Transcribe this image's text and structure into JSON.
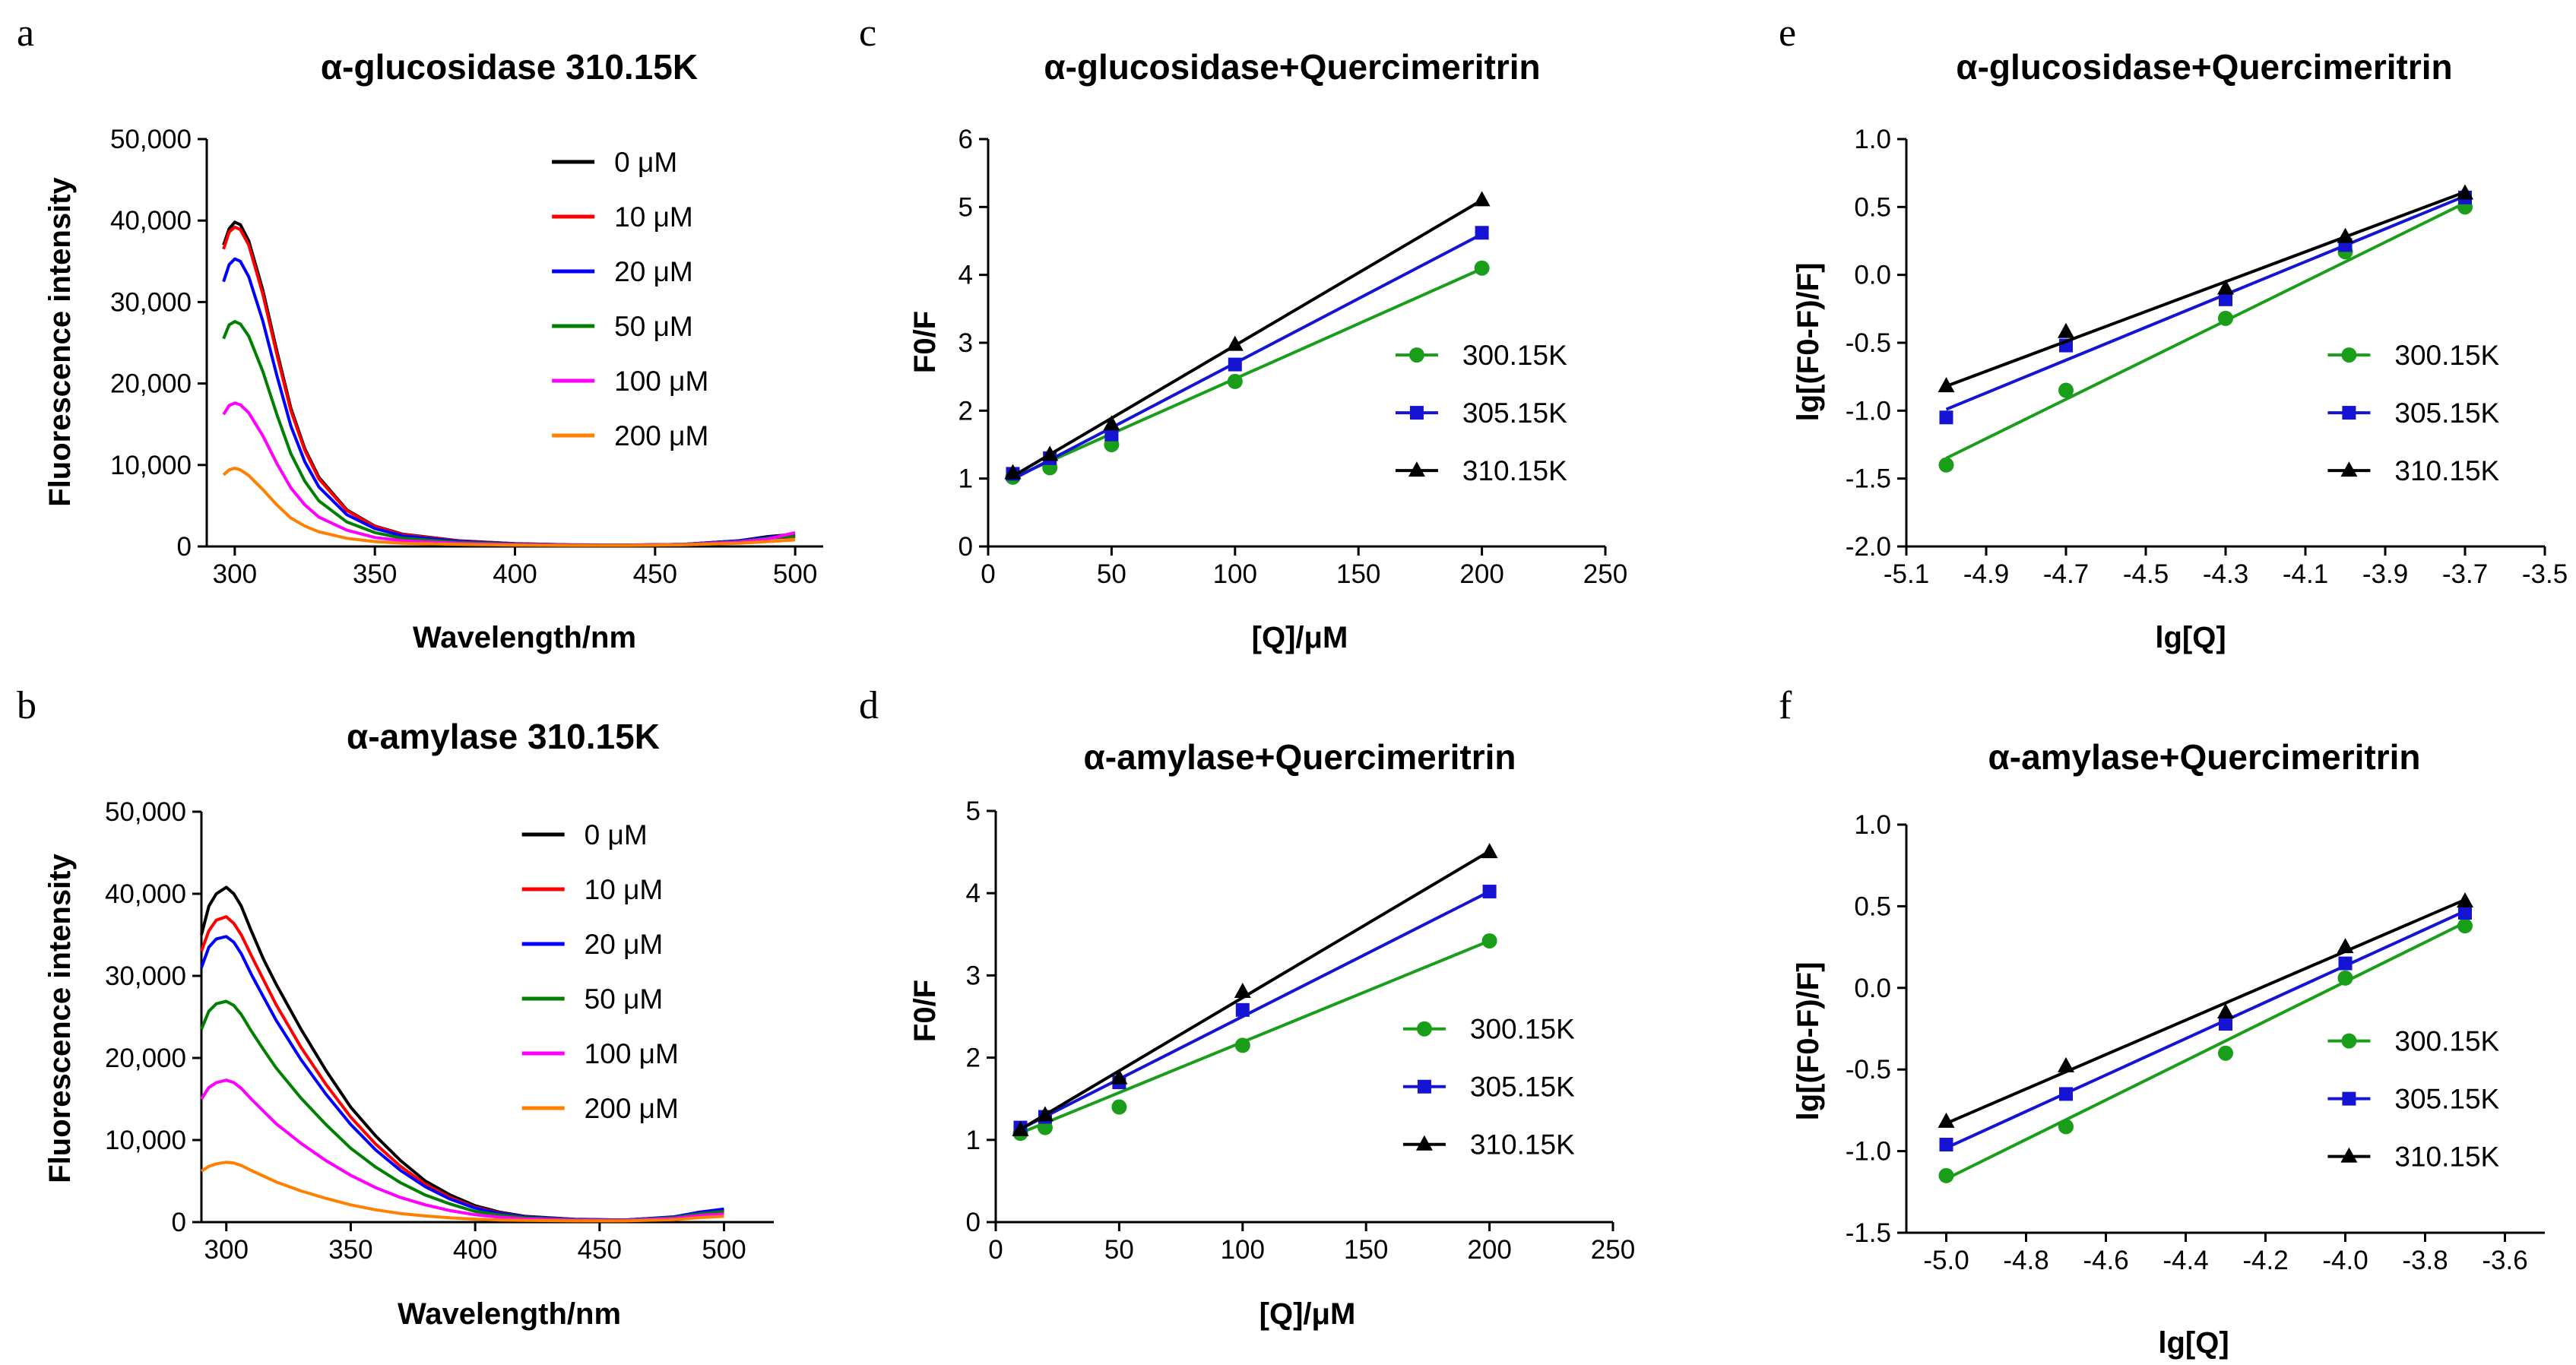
{
  "figure": {
    "background": "#ffffff"
  },
  "chart_data": [
    {
      "panel": "a",
      "type": "line",
      "title": "α-glucosidase 310.15K",
      "xlabel": "Wavelength/nm",
      "ylabel": "Fluorescence intensity",
      "xlim": [
        290,
        510
      ],
      "ylim": [
        0,
        50000
      ],
      "xticks": [
        300,
        350,
        400,
        450,
        500
      ],
      "xtick_labels": [
        "300",
        "350",
        "400",
        "450",
        "500"
      ],
      "yticks": [
        0,
        10000,
        20000,
        30000,
        40000,
        50000
      ],
      "ytick_labels": [
        "0",
        "10,000",
        "20,000",
        "30,000",
        "40,000",
        "50,000"
      ],
      "legend_position": "top-right",
      "x": [
        296,
        298,
        300,
        302,
        305,
        310,
        315,
        320,
        325,
        330,
        340,
        350,
        360,
        380,
        400,
        420,
        440,
        460,
        480,
        490,
        500
      ],
      "series": [
        {
          "name": "0 μM",
          "color": "#000000",
          "values": [
            37000,
            39000,
            39800,
            39500,
            37500,
            31500,
            24000,
            17000,
            12000,
            8500,
            4500,
            2500,
            1500,
            700,
            350,
            200,
            180,
            250,
            700,
            1200,
            1500
          ]
        },
        {
          "name": "10 μM",
          "color": "#ff0000",
          "values": [
            36500,
            38600,
            39200,
            38900,
            37000,
            31000,
            23600,
            16700,
            11800,
            8300,
            4400,
            2450,
            1450,
            680,
            340,
            200,
            180,
            250,
            650,
            1000,
            1200
          ]
        },
        {
          "name": "20 μM",
          "color": "#0000ff",
          "values": [
            32500,
            34600,
            35300,
            35000,
            33100,
            27700,
            21000,
            14800,
            10400,
            7300,
            3900,
            2200,
            1300,
            620,
            320,
            190,
            170,
            250,
            700,
            1100,
            1400
          ]
        },
        {
          "name": "50 μM",
          "color": "#008000",
          "values": [
            25500,
            27200,
            27600,
            27300,
            25800,
            21500,
            16200,
            11400,
            8000,
            5600,
            3000,
            1700,
            1000,
            500,
            280,
            170,
            160,
            250,
            600,
            1000,
            1300
          ]
        },
        {
          "name": "100 μM",
          "color": "#ff00ff",
          "values": [
            16200,
            17300,
            17600,
            17400,
            16400,
            13600,
            10200,
            7200,
            5100,
            3600,
            2000,
            1100,
            700,
            380,
            230,
            150,
            150,
            230,
            550,
            900,
            1700
          ]
        },
        {
          "name": "200 μM",
          "color": "#ff8000",
          "values": [
            8800,
            9400,
            9600,
            9400,
            8700,
            7000,
            5100,
            3500,
            2500,
            1800,
            1000,
            600,
            400,
            250,
            170,
            130,
            130,
            200,
            400,
            600,
            800
          ]
        }
      ]
    },
    {
      "panel": "b",
      "type": "line",
      "title": "α-amylase 310.15K",
      "xlabel": "Wavelength/nm",
      "ylabel": "Fluorescence intensity",
      "xlim": [
        290,
        520
      ],
      "ylim": [
        0,
        50000
      ],
      "xticks": [
        300,
        350,
        400,
        450,
        500
      ],
      "xtick_labels": [
        "300",
        "350",
        "400",
        "450",
        "500"
      ],
      "yticks": [
        0,
        10000,
        20000,
        30000,
        40000,
        50000
      ],
      "ytick_labels": [
        "0",
        "10,000",
        "20,000",
        "30,000",
        "40,000",
        "50,000"
      ],
      "legend_position": "top-right",
      "x": [
        290,
        293,
        296,
        300,
        303,
        306,
        310,
        315,
        320,
        330,
        340,
        350,
        360,
        370,
        380,
        390,
        400,
        410,
        420,
        440,
        460,
        480,
        490,
        500
      ],
      "series": [
        {
          "name": "0 μM",
          "color": "#000000",
          "values": [
            35000,
            38500,
            40000,
            40800,
            40000,
            38500,
            35500,
            32000,
            29000,
            23500,
            18500,
            14000,
            10500,
            7500,
            5000,
            3300,
            2000,
            1200,
            700,
            350,
            250,
            600,
            1200,
            1500
          ]
        },
        {
          "name": "10 μM",
          "color": "#ff0000",
          "values": [
            33000,
            35500,
            36800,
            37200,
            36400,
            35000,
            32500,
            29500,
            26500,
            21300,
            16800,
            12800,
            9500,
            6800,
            4600,
            3000,
            1800,
            1100,
            650,
            330,
            250,
            600,
            1100,
            1400
          ]
        },
        {
          "name": "20 μM",
          "color": "#0000ff",
          "values": [
            31000,
            33500,
            34500,
            34800,
            34100,
            32700,
            30200,
            27400,
            24600,
            19800,
            15600,
            11900,
            8800,
            6300,
            4300,
            2800,
            1700,
            1050,
            620,
            320,
            250,
            650,
            1200,
            1600
          ]
        },
        {
          "name": "50 μM",
          "color": "#008000",
          "values": [
            23500,
            25700,
            26600,
            26900,
            26400,
            25300,
            23300,
            21000,
            18800,
            15100,
            11900,
            9000,
            6700,
            4800,
            3300,
            2200,
            1300,
            850,
            520,
            290,
            230,
            550,
            1000,
            1300
          ]
        },
        {
          "name": "100 μM",
          "color": "#ff00ff",
          "values": [
            15000,
            16400,
            17000,
            17300,
            17000,
            16300,
            15000,
            13500,
            12000,
            9600,
            7500,
            5700,
            4200,
            3000,
            2100,
            1400,
            900,
            600,
            400,
            240,
            200,
            450,
            800,
            1000
          ]
        },
        {
          "name": "200 μM",
          "color": "#ff8000",
          "values": [
            6200,
            6800,
            7100,
            7300,
            7200,
            6900,
            6300,
            5600,
            4900,
            3800,
            2900,
            2100,
            1500,
            1050,
            750,
            520,
            360,
            260,
            200,
            150,
            150,
            300,
            550,
            700
          ]
        }
      ]
    },
    {
      "panel": "c",
      "type": "scatter",
      "title": "α-glucosidase+Quercimeritrin",
      "xlabel": "[Q]/μM",
      "ylabel": "F0/F",
      "xlim": [
        0,
        250
      ],
      "ylim": [
        0,
        6
      ],
      "xticks": [
        0,
        50,
        100,
        150,
        200,
        250
      ],
      "xtick_labels": [
        "0",
        "50",
        "100",
        "150",
        "200",
        "250"
      ],
      "yticks": [
        0,
        1,
        2,
        3,
        4,
        5,
        6
      ],
      "ytick_labels": [
        "0",
        "1",
        "2",
        "3",
        "4",
        "5",
        "6"
      ],
      "legend_position": "center-right",
      "fit_lines": true,
      "x": [
        10,
        25,
        50,
        100,
        200
      ],
      "series": [
        {
          "name": "300.15K",
          "color": "#1a9e1a",
          "marker": "circle",
          "values": [
            1.02,
            1.16,
            1.5,
            2.43,
            4.1
          ],
          "fit": [
            0.85,
            0.0162
          ]
        },
        {
          "name": "305.15K",
          "color": "#1414d2",
          "marker": "square",
          "values": [
            1.07,
            1.3,
            1.65,
            2.68,
            4.62
          ],
          "fit": [
            0.8,
            0.019
          ]
        },
        {
          "name": "310.15K",
          "color": "#000000",
          "marker": "triangle",
          "values": [
            1.08,
            1.35,
            1.8,
            2.97,
            5.1
          ],
          "fit": [
            0.82,
            0.0214
          ]
        }
      ]
    },
    {
      "panel": "d",
      "type": "scatter",
      "title": "α-amylase+Quercimeritrin",
      "xlabel": "[Q]/μM",
      "ylabel": "F0/F",
      "xlim": [
        0,
        250
      ],
      "ylim": [
        0,
        5
      ],
      "xticks": [
        0,
        50,
        100,
        150,
        200,
        250
      ],
      "xtick_labels": [
        "0",
        "50",
        "100",
        "150",
        "200",
        "250"
      ],
      "yticks": [
        0,
        1,
        2,
        3,
        4,
        5
      ],
      "ytick_labels": [
        "0",
        "1",
        "2",
        "3",
        "4",
        "5"
      ],
      "legend_position": "center-right",
      "fit_lines": true,
      "x": [
        10,
        20,
        50,
        100,
        200
      ],
      "series": [
        {
          "name": "300.15K",
          "color": "#1a9e1a",
          "marker": "circle",
          "values": [
            1.08,
            1.15,
            1.4,
            2.15,
            3.42
          ],
          "fit": [
            0.96,
            0.0123
          ]
        },
        {
          "name": "305.15K",
          "color": "#1414d2",
          "marker": "square",
          "values": [
            1.15,
            1.28,
            1.7,
            2.58,
            4.02
          ],
          "fit": [
            0.98,
            0.0152
          ]
        },
        {
          "name": "310.15K",
          "color": "#000000",
          "marker": "triangle",
          "values": [
            1.12,
            1.3,
            1.75,
            2.8,
            4.5
          ],
          "fit": [
            0.95,
            0.0178
          ]
        }
      ]
    },
    {
      "panel": "e",
      "type": "scatter",
      "title": "α-glucosidase+Quercimeritrin",
      "xlabel": "lg[Q]",
      "ylabel": "lg[(F0-F)/F]",
      "xlim": [
        -5.1,
        -3.5
      ],
      "ylim": [
        -2.0,
        1.0
      ],
      "xticks": [
        -5.1,
        -4.9,
        -4.7,
        -4.5,
        -4.3,
        -4.1,
        -3.9,
        -3.7,
        -3.5
      ],
      "xtick_labels": [
        "-5.1",
        "-4.9",
        "-4.7",
        "-4.5",
        "-4.3",
        "-4.1",
        "-3.9",
        "-3.7",
        "-3.5"
      ],
      "yticks": [
        -2.0,
        -1.5,
        -1.0,
        -0.5,
        0.0,
        0.5,
        1.0
      ],
      "ytick_labels": [
        "-2.0",
        "-1.5",
        "-1.0",
        "-0.5",
        "0.0",
        "0.5",
        "1.0"
      ],
      "legend_position": "center-right",
      "fit_lines": true,
      "x": [
        -5.0,
        -4.7,
        -4.3,
        -4.0,
        -3.7
      ],
      "series": [
        {
          "name": "300.15K",
          "color": "#1a9e1a",
          "marker": "circle",
          "values": [
            -1.4,
            -0.85,
            -0.32,
            0.17,
            0.5
          ],
          "fit": [
            [
              -5.0,
              -1.35
            ],
            [
              -3.7,
              0.53
            ]
          ]
        },
        {
          "name": "305.15K",
          "color": "#1414d2",
          "marker": "square",
          "values": [
            -1.05,
            -0.52,
            -0.18,
            0.22,
            0.57
          ],
          "fit": [
            [
              -5.0,
              -0.99
            ],
            [
              -3.7,
              0.58
            ]
          ]
        },
        {
          "name": "310.15K",
          "color": "#000000",
          "marker": "triangle",
          "values": [
            -0.82,
            -0.42,
            -0.1,
            0.28,
            0.6
          ],
          "fit": [
            [
              -5.0,
              -0.82
            ],
            [
              -3.7,
              0.61
            ]
          ]
        }
      ]
    },
    {
      "panel": "f",
      "type": "scatter",
      "title": "α-amylase+Quercimeritrin",
      "xlabel": "lg[Q]",
      "ylabel": "lg[(F0-F)/F]",
      "xlim": [
        -5.1,
        -3.5
      ],
      "ylim": [
        -1.5,
        1.0
      ],
      "xticks": [
        -5.0,
        -4.8,
        -4.6,
        -4.4,
        -4.2,
        -4.0,
        -3.8,
        -3.6
      ],
      "xtick_labels": [
        "-5.0",
        "-4.8",
        "-4.6",
        "-4.4",
        "-4.2",
        "-4.0",
        "-3.8",
        "-3.6"
      ],
      "yticks": [
        -1.5,
        -1.0,
        -0.5,
        0.0,
        0.5,
        1.0
      ],
      "ytick_labels": [
        "-1.5",
        "-1.0",
        "-0.5",
        "0.0",
        "0.5",
        "1.0"
      ],
      "legend_position": "center-right",
      "fit_lines": true,
      "x": [
        -5.0,
        -4.7,
        -4.3,
        -4.0,
        -3.7
      ],
      "series": [
        {
          "name": "300.15K",
          "color": "#1a9e1a",
          "marker": "circle",
          "values": [
            -1.15,
            -0.85,
            -0.4,
            0.06,
            0.38
          ],
          "fit": [
            [
              -5.0,
              -1.17
            ],
            [
              -3.7,
              0.4
            ]
          ]
        },
        {
          "name": "305.15K",
          "color": "#1414d2",
          "marker": "square",
          "values": [
            -0.96,
            -0.65,
            -0.22,
            0.15,
            0.46
          ],
          "fit": [
            [
              -5.0,
              -0.98
            ],
            [
              -3.7,
              0.47
            ]
          ]
        },
        {
          "name": "310.15K",
          "color": "#000000",
          "marker": "triangle",
          "values": [
            -0.82,
            -0.48,
            -0.15,
            0.25,
            0.53
          ],
          "fit": [
            [
              -5.0,
              -0.83
            ],
            [
              -3.7,
              0.54
            ]
          ]
        }
      ]
    }
  ]
}
